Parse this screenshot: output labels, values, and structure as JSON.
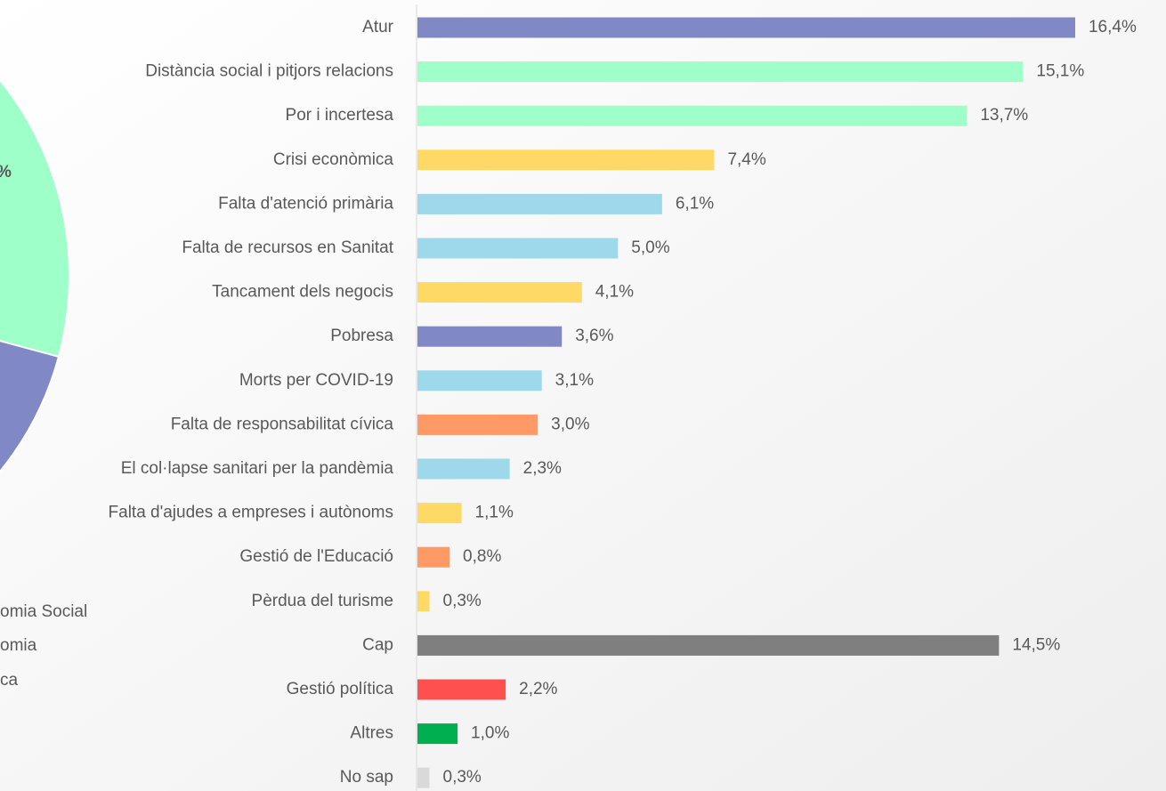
{
  "chart_data": {
    "type": "bar",
    "orientation": "horizontal",
    "categories": [
      "Atur",
      "Distància social i pitjors relacions",
      "Por i incertesa",
      "Crisi econòmica",
      "Falta d'atenció primària",
      "Falta de recursos en Sanitat",
      "Tancament dels negocis",
      "Pobresa",
      "Morts per COVID-19",
      "Falta de responsabilitat cívica",
      "El col·lapse sanitari per la pandèmia",
      "Falta d'ajudes a empreses i autònoms",
      "Gestió de l'Educació",
      "Pèrdua del turisme",
      "Cap",
      "Gestió política",
      "Altres",
      "No sap"
    ],
    "values": [
      16.4,
      15.1,
      13.7,
      7.4,
      6.1,
      5.0,
      4.1,
      3.6,
      3.1,
      3.0,
      2.3,
      1.1,
      0.8,
      0.3,
      14.5,
      2.2,
      1.0,
      0.3
    ],
    "value_labels": [
      "16,4%",
      "15,1%",
      "13,7%",
      "7,4%",
      "6,1%",
      "5,0%",
      "4,1%",
      "3,6%",
      "3,1%",
      "3,0%",
      "2,3%",
      "1,1%",
      "0,8%",
      "0,3%",
      "14,5%",
      "2,2%",
      "1,0%",
      "0,3%"
    ],
    "colors": [
      "#8088c6",
      "#9effc9",
      "#9effc9",
      "#ffd966",
      "#9dd9ea",
      "#9dd9ea",
      "#ffd966",
      "#8088c6",
      "#9dd9ea",
      "#ff9966",
      "#9dd9ea",
      "#ffd966",
      "#ff9966",
      "#ffd966",
      "#7f7f7f",
      "#ff5050",
      "#00b050",
      "#d9d9d9"
    ],
    "xlim": [
      0,
      18
    ]
  },
  "pie_fragment": {
    "labels": [
      "%"
    ],
    "legend": [
      "omia Social",
      "omia",
      "ca"
    ]
  }
}
